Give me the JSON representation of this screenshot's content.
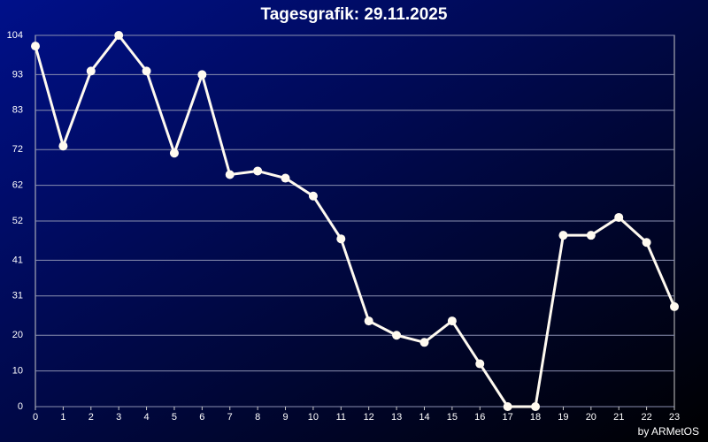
{
  "chart_data": {
    "type": "line",
    "title": "Tagesgrafik: 29.11.2025",
    "footer": "by ARMetOS",
    "x": [
      0,
      1,
      2,
      3,
      4,
      5,
      6,
      7,
      8,
      9,
      10,
      11,
      12,
      13,
      14,
      15,
      16,
      17,
      18,
      19,
      20,
      21,
      22,
      23
    ],
    "series": [
      {
        "color": "#fffaf0",
        "values": [
          101,
          73,
          94,
          104,
          94,
          71,
          93,
          65,
          66,
          64,
          59,
          47,
          24,
          20,
          18,
          24,
          12,
          0,
          0,
          48,
          48,
          53,
          46,
          28
        ]
      }
    ],
    "xlim": [
      0,
      23
    ],
    "xticks": [
      0,
      1,
      2,
      3,
      4,
      5,
      6,
      7,
      8,
      9,
      10,
      11,
      12,
      13,
      14,
      15,
      16,
      17,
      18,
      19,
      20,
      21,
      22,
      23
    ],
    "ylim": [
      0,
      104
    ],
    "yticks": [
      0,
      10,
      20,
      31,
      41,
      52,
      62,
      72,
      83,
      93,
      104
    ],
    "grid": true
  }
}
